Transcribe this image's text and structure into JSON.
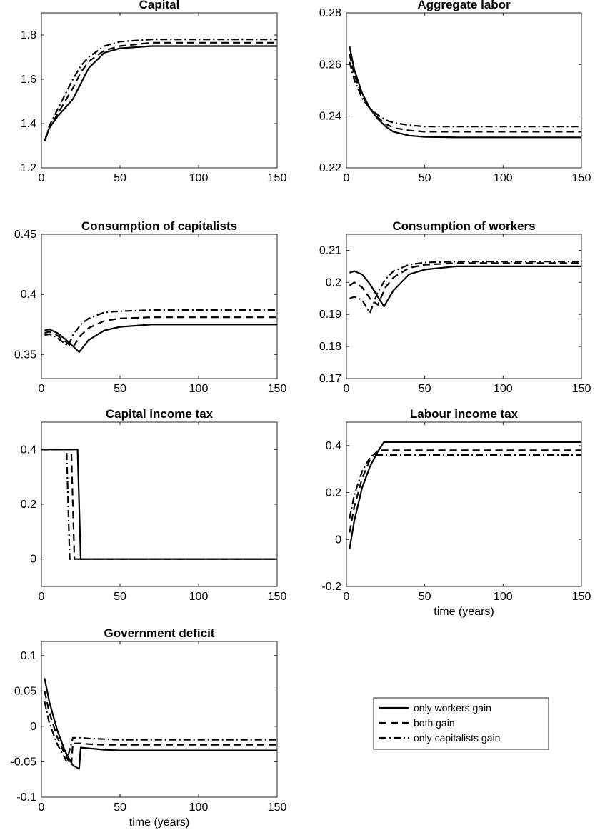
{
  "figure": {
    "legend": {
      "entries": [
        {
          "name": "only workers gain",
          "style": "solid"
        },
        {
          "name": "both gain",
          "style": "dashed"
        },
        {
          "name": "only capitalists gain",
          "style": "dashdot"
        }
      ]
    }
  },
  "chart_data": [
    {
      "type": "line",
      "title": "Capital",
      "xlabel": "",
      "xlim": [
        0,
        150
      ],
      "ylim": [
        1.2,
        1.9
      ],
      "xticks": [
        0,
        50,
        100,
        150
      ],
      "yticks": [
        1.2,
        1.4,
        1.6,
        1.8
      ],
      "series": [
        {
          "name": "only workers gain",
          "style": "solid",
          "x": [
            2,
            5,
            10,
            15,
            20,
            25,
            30,
            40,
            50,
            70,
            100,
            150
          ],
          "y": [
            1.32,
            1.38,
            1.43,
            1.47,
            1.51,
            1.58,
            1.65,
            1.72,
            1.74,
            1.75,
            1.75,
            1.75
          ]
        },
        {
          "name": "both gain",
          "style": "dashed",
          "x": [
            2,
            5,
            10,
            15,
            20,
            25,
            30,
            40,
            50,
            70,
            100,
            150
          ],
          "y": [
            1.32,
            1.38,
            1.44,
            1.5,
            1.56,
            1.63,
            1.68,
            1.73,
            1.75,
            1.765,
            1.765,
            1.765
          ]
        },
        {
          "name": "only capitalists gain",
          "style": "dashdot",
          "x": [
            2,
            5,
            10,
            15,
            20,
            25,
            30,
            40,
            50,
            70,
            100,
            150
          ],
          "y": [
            1.32,
            1.39,
            1.46,
            1.53,
            1.6,
            1.66,
            1.7,
            1.75,
            1.77,
            1.78,
            1.78,
            1.78
          ]
        }
      ]
    },
    {
      "type": "line",
      "title": "Aggregate labor",
      "xlabel": "",
      "xlim": [
        0,
        150
      ],
      "ylim": [
        0.22,
        0.28
      ],
      "xticks": [
        0,
        50,
        100,
        150
      ],
      "yticks": [
        0.22,
        0.24,
        0.26,
        0.28
      ],
      "series": [
        {
          "name": "only workers gain",
          "style": "solid",
          "x": [
            2,
            5,
            10,
            15,
            20,
            25,
            30,
            40,
            50,
            70,
            100,
            150
          ],
          "y": [
            0.267,
            0.258,
            0.249,
            0.243,
            0.239,
            0.236,
            0.234,
            0.2325,
            0.232,
            0.2318,
            0.2318,
            0.2318
          ]
        },
        {
          "name": "both gain",
          "style": "dashed",
          "x": [
            2,
            5,
            10,
            15,
            20,
            25,
            30,
            40,
            50,
            70,
            100,
            150
          ],
          "y": [
            0.264,
            0.256,
            0.248,
            0.243,
            0.2395,
            0.237,
            0.2355,
            0.2345,
            0.234,
            0.234,
            0.234,
            0.234
          ]
        },
        {
          "name": "only capitalists gain",
          "style": "dashdot",
          "x": [
            2,
            5,
            10,
            15,
            20,
            25,
            30,
            40,
            50,
            70,
            100,
            150
          ],
          "y": [
            0.261,
            0.254,
            0.247,
            0.243,
            0.2405,
            0.2385,
            0.2375,
            0.2365,
            0.236,
            0.236,
            0.236,
            0.236
          ]
        }
      ]
    },
    {
      "type": "line",
      "title": "Consumption of capitalists",
      "xlabel": "",
      "xlim": [
        0,
        150
      ],
      "ylim": [
        0.33,
        0.45
      ],
      "xticks": [
        0,
        50,
        100,
        150
      ],
      "yticks": [
        0.35,
        0.4,
        0.45
      ],
      "series": [
        {
          "name": "only workers gain",
          "style": "solid",
          "x": [
            2,
            5,
            10,
            15,
            20,
            24,
            30,
            40,
            50,
            70,
            100,
            150
          ],
          "y": [
            0.37,
            0.371,
            0.368,
            0.363,
            0.357,
            0.352,
            0.362,
            0.37,
            0.373,
            0.375,
            0.375,
            0.375
          ]
        },
        {
          "name": "both gain",
          "style": "dashed",
          "x": [
            2,
            5,
            10,
            15,
            20,
            25,
            30,
            40,
            50,
            70,
            100,
            150
          ],
          "y": [
            0.368,
            0.369,
            0.366,
            0.361,
            0.356,
            0.366,
            0.372,
            0.378,
            0.38,
            0.381,
            0.381,
            0.381
          ]
        },
        {
          "name": "only capitalists gain",
          "style": "dashdot",
          "x": [
            2,
            5,
            10,
            15,
            17,
            20,
            25,
            30,
            40,
            50,
            70,
            100,
            150
          ],
          "y": [
            0.366,
            0.367,
            0.364,
            0.359,
            0.357,
            0.366,
            0.375,
            0.38,
            0.385,
            0.386,
            0.387,
            0.387,
            0.387
          ]
        }
      ]
    },
    {
      "type": "line",
      "title": "Consumption of workers",
      "xlabel": "",
      "xlim": [
        0,
        150
      ],
      "ylim": [
        0.17,
        0.215
      ],
      "xticks": [
        0,
        50,
        100,
        150
      ],
      "yticks": [
        0.17,
        0.18,
        0.19,
        0.2,
        0.21
      ],
      "series": [
        {
          "name": "only workers gain",
          "style": "solid",
          "x": [
            2,
            5,
            10,
            15,
            20,
            24,
            30,
            40,
            50,
            70,
            100,
            150
          ],
          "y": [
            0.203,
            0.2035,
            0.2025,
            0.1995,
            0.1955,
            0.1925,
            0.1975,
            0.2025,
            0.204,
            0.205,
            0.205,
            0.205
          ]
        },
        {
          "name": "both gain",
          "style": "dashed",
          "x": [
            2,
            5,
            10,
            15,
            20,
            25,
            30,
            40,
            50,
            70,
            100,
            150
          ],
          "y": [
            0.199,
            0.2,
            0.1985,
            0.195,
            0.193,
            0.1985,
            0.2015,
            0.2045,
            0.2055,
            0.206,
            0.206,
            0.206
          ]
        },
        {
          "name": "only capitalists gain",
          "style": "dashdot",
          "x": [
            2,
            5,
            10,
            15,
            20,
            25,
            30,
            40,
            50,
            70,
            100,
            150
          ],
          "y": [
            0.195,
            0.1955,
            0.1945,
            0.1905,
            0.197,
            0.201,
            0.2035,
            0.2055,
            0.2062,
            0.2065,
            0.2065,
            0.2065
          ]
        }
      ]
    },
    {
      "type": "line",
      "title": "Capital income tax",
      "xlabel": "",
      "xlim": [
        0,
        150
      ],
      "ylim": [
        -0.1,
        0.5
      ],
      "xticks": [
        0,
        50,
        100,
        150
      ],
      "yticks": [
        0,
        0.2,
        0.4
      ],
      "series": [
        {
          "name": "only workers gain",
          "style": "solid",
          "x": [
            0,
            23,
            25,
            150
          ],
          "y": [
            0.4,
            0.4,
            0,
            0
          ]
        },
        {
          "name": "both gain",
          "style": "dashed",
          "x": [
            0,
            19,
            21,
            150
          ],
          "y": [
            0.4,
            0.4,
            0,
            0
          ]
        },
        {
          "name": "only capitalists gain",
          "style": "dashdot",
          "x": [
            0,
            16,
            18,
            150
          ],
          "y": [
            0.4,
            0.4,
            0,
            0
          ]
        }
      ]
    },
    {
      "type": "line",
      "title": "Labour income tax",
      "xlabel": "time (years)",
      "xlim": [
        0,
        150
      ],
      "ylim": [
        -0.2,
        0.5
      ],
      "xticks": [
        0,
        50,
        100,
        150
      ],
      "yticks": [
        -0.2,
        0,
        0.2,
        0.4
      ],
      "series": [
        {
          "name": "only workers gain",
          "style": "solid",
          "x": [
            2,
            5,
            10,
            15,
            20,
            24,
            150
          ],
          "y": [
            -0.04,
            0.08,
            0.22,
            0.31,
            0.375,
            0.415,
            0.415
          ]
        },
        {
          "name": "both gain",
          "style": "dashed",
          "x": [
            2,
            5,
            10,
            15,
            20,
            150
          ],
          "y": [
            0.03,
            0.14,
            0.26,
            0.34,
            0.38,
            0.38
          ]
        },
        {
          "name": "only capitalists gain",
          "style": "dashdot",
          "x": [
            2,
            5,
            10,
            15,
            17,
            150
          ],
          "y": [
            0.09,
            0.19,
            0.29,
            0.35,
            0.36,
            0.36
          ]
        }
      ]
    },
    {
      "type": "line",
      "title": "Government deficit",
      "xlabel": "time (years)",
      "xlim": [
        0,
        150
      ],
      "ylim": [
        -0.1,
        0.12
      ],
      "xticks": [
        0,
        50,
        100,
        150
      ],
      "yticks": [
        -0.1,
        -0.05,
        0,
        0.05,
        0.1
      ],
      "series": [
        {
          "name": "only workers gain",
          "style": "solid",
          "x": [
            2,
            5,
            10,
            15,
            20,
            24,
            25,
            30,
            40,
            50,
            70,
            100,
            150
          ],
          "y": [
            0.068,
            0.035,
            -0.005,
            -0.035,
            -0.055,
            -0.06,
            -0.03,
            -0.031,
            -0.033,
            -0.034,
            -0.034,
            -0.034,
            -0.034
          ]
        },
        {
          "name": "both gain",
          "style": "dashed",
          "x": [
            2,
            5,
            10,
            15,
            19,
            20,
            25,
            30,
            40,
            50,
            70,
            100,
            150
          ],
          "y": [
            0.05,
            0.02,
            -0.015,
            -0.04,
            -0.055,
            -0.024,
            -0.024,
            -0.025,
            -0.026,
            -0.026,
            -0.026,
            -0.026,
            -0.026
          ]
        },
        {
          "name": "only capitalists gain",
          "style": "dashdot",
          "x": [
            2,
            5,
            10,
            15,
            16,
            20,
            25,
            30,
            40,
            50,
            70,
            100,
            150
          ],
          "y": [
            0.035,
            0.005,
            -0.025,
            -0.045,
            -0.05,
            -0.016,
            -0.016,
            -0.017,
            -0.018,
            -0.019,
            -0.019,
            -0.019,
            -0.019
          ]
        }
      ]
    }
  ]
}
